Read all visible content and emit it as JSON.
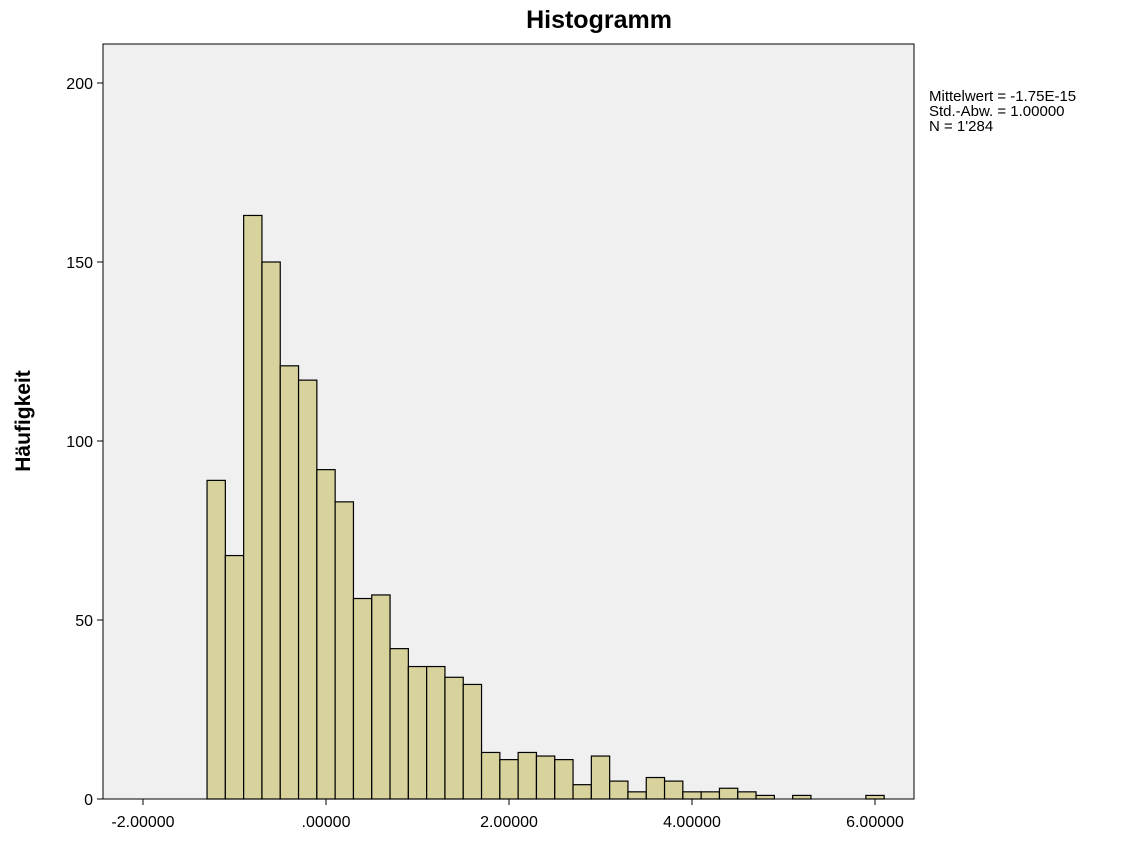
{
  "chart_data": {
    "type": "bar",
    "title": "Histogramm",
    "xlabel": "",
    "ylabel": "Häufigkeit",
    "xlim": [
      -2.4,
      6.5
    ],
    "ylim": [
      0,
      210
    ],
    "x_ticks": [
      -2,
      0,
      2,
      4,
      6
    ],
    "x_tick_labels": [
      "-2.00000",
      ".00000",
      "2.00000",
      "4.00000",
      "6.00000"
    ],
    "y_ticks": [
      0,
      50,
      100,
      150,
      200
    ],
    "y_tick_labels": [
      "0",
      "50",
      "100",
      "150",
      "200"
    ],
    "bin_width": 0.2,
    "bins": [
      {
        "x0": -1.3,
        "value": 89
      },
      {
        "x0": -1.1,
        "value": 68
      },
      {
        "x0": -0.9,
        "value": 163
      },
      {
        "x0": -0.7,
        "value": 150
      },
      {
        "x0": -0.5,
        "value": 121
      },
      {
        "x0": -0.3,
        "value": 117
      },
      {
        "x0": -0.1,
        "value": 92
      },
      {
        "x0": 0.1,
        "value": 83
      },
      {
        "x0": 0.3,
        "value": 56
      },
      {
        "x0": 0.5,
        "value": 57
      },
      {
        "x0": 0.7,
        "value": 42
      },
      {
        "x0": 0.9,
        "value": 37
      },
      {
        "x0": 1.1,
        "value": 37
      },
      {
        "x0": 1.3,
        "value": 34
      },
      {
        "x0": 1.5,
        "value": 32
      },
      {
        "x0": 1.7,
        "value": 13
      },
      {
        "x0": 1.9,
        "value": 11
      },
      {
        "x0": 2.1,
        "value": 13
      },
      {
        "x0": 2.3,
        "value": 12
      },
      {
        "x0": 2.5,
        "value": 11
      },
      {
        "x0": 2.7,
        "value": 4
      },
      {
        "x0": 2.9,
        "value": 12
      },
      {
        "x0": 3.1,
        "value": 5
      },
      {
        "x0": 3.3,
        "value": 2
      },
      {
        "x0": 3.5,
        "value": 6
      },
      {
        "x0": 3.7,
        "value": 5
      },
      {
        "x0": 3.9,
        "value": 2
      },
      {
        "x0": 4.1,
        "value": 2
      },
      {
        "x0": 4.3,
        "value": 3
      },
      {
        "x0": 4.5,
        "value": 2
      },
      {
        "x0": 4.7,
        "value": 1
      },
      {
        "x0": 5.1,
        "value": 1
      },
      {
        "x0": 5.9,
        "value": 1
      }
    ],
    "stats": {
      "mean": "Mittelwert = -1.75E-15",
      "std": "Std.-Abw. = 1.00000",
      "n": "N = 1'284"
    },
    "grid": false,
    "legend": "none",
    "colors": {
      "bar_fill": "#d8d29c",
      "bar_stroke": "#000000",
      "plot_bg": "#f0f0f0",
      "frame": "#000000"
    }
  }
}
